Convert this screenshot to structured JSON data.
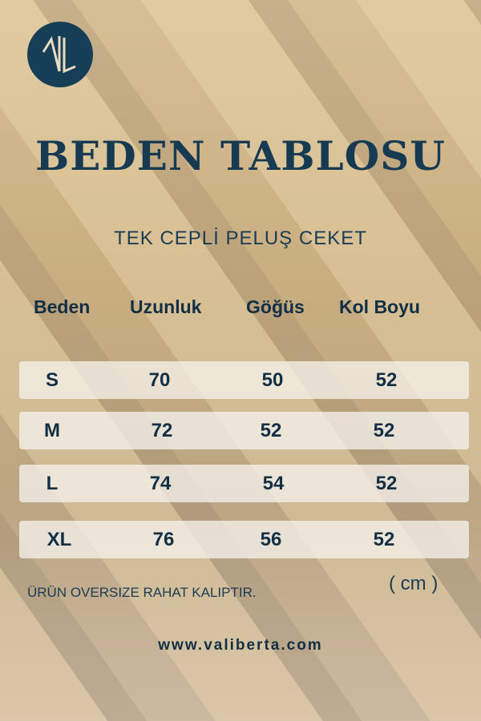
{
  "brand": {
    "logo_text": "VL"
  },
  "title": "BEDEN TABLOSU",
  "subtitle": "TEK CEPLİ PELUŞ CEKET",
  "headers": [
    "Beden",
    "Uzunluk",
    "Göğüs",
    "Kol Boyu"
  ],
  "rows": [
    [
      "S",
      "70",
      "50",
      "52"
    ],
    [
      "M",
      "72",
      "52",
      "52"
    ],
    [
      "L",
      "74",
      "54",
      "52"
    ],
    [
      "XL",
      "76",
      "56",
      "52"
    ]
  ],
  "note": "ÜRÜN OVERSIZE RAHAT KALIPTIR.",
  "unit": "( cm )",
  "website": "www.valiberta.com",
  "colors": {
    "text": "#112f45",
    "logo": "#163e57",
    "background": "#d0b88e"
  }
}
